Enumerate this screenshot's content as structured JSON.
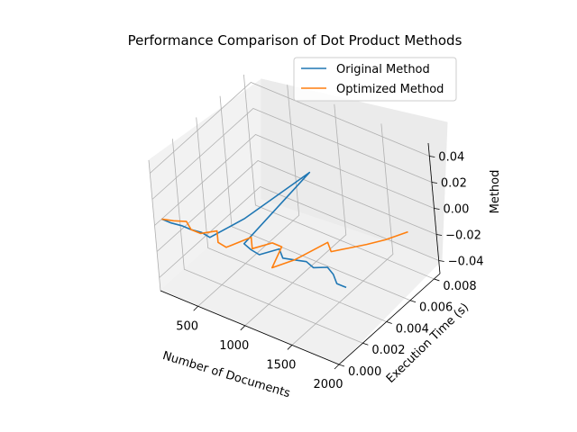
{
  "chart_data": {
    "type": "line",
    "projection": "3d",
    "title": "Performance Comparison of Dot Product Methods",
    "xlabel": "Number of Documents",
    "ylabel": "Execution Time (s)",
    "zlabel": "Method",
    "xlim": [
      100,
      2000
    ],
    "ylim": [
      0,
      0.0085
    ],
    "zlim": [
      -0.05,
      0.05
    ],
    "xticks": [
      500,
      1000,
      1500,
      2000
    ],
    "xtick_labels": [
      "500",
      "1000",
      "1500",
      "2000"
    ],
    "yticks": [
      0,
      0.002,
      0.004,
      0.006,
      0.008
    ],
    "ytick_labels": [
      "0.000",
      "0.002",
      "0.004",
      "0.006",
      "0.008"
    ],
    "zticks": [
      -0.04,
      -0.02,
      0,
      0.02,
      0.04
    ],
    "ztick_labels": [
      "−0.04",
      "−0.02",
      "0.00",
      "0.02",
      "0.04"
    ],
    "grid": true,
    "legend_position": "top-right",
    "series": [
      {
        "name": "Original Method",
        "color": "#1f77b4",
        "x": [
          100,
          200,
          300,
          400,
          500,
          600,
          700,
          800,
          900,
          1000,
          1100,
          1200,
          1300,
          1400,
          1500,
          1600,
          1700,
          1800,
          1900,
          2000
        ],
        "y": [
          0.0006,
          0.0006,
          0.0007,
          0.0007,
          0.0008,
          0.0007,
          0.0028,
          0.0075,
          0.0012,
          0.001,
          0.0009,
          0.0018,
          0.0013,
          0.0015,
          0.0017,
          0.0015,
          0.0019,
          0.0016,
          0.0011,
          0.0011
        ],
        "z": [
          0,
          0,
          0,
          0,
          0,
          0,
          0,
          0,
          0,
          0,
          0,
          0,
          0,
          0,
          0,
          0,
          0,
          0,
          0,
          0
        ]
      },
      {
        "name": "Optimized Method",
        "color": "#ff7f0e",
        "x": [
          100,
          200,
          300,
          400,
          500,
          600,
          700,
          800,
          900,
          1000,
          1100,
          1200,
          1300,
          1400,
          1500,
          1600,
          1700,
          1800,
          1900,
          2000
        ],
        "y": [
          0.0006,
          0.0008,
          0.0011,
          0.0007,
          0.0007,
          0.0013,
          0.0006,
          0.0005,
          0.0018,
          0.0011,
          0.002,
          0.002,
          0.0004,
          0.0015,
          0.0035,
          0.003,
          0.0037,
          0.0044,
          0.0052,
          0.0063
        ],
        "z": [
          0,
          0,
          0,
          0,
          0,
          0,
          0,
          0,
          0,
          0,
          0,
          0,
          0,
          0,
          0,
          0,
          0,
          0,
          0,
          0
        ]
      }
    ]
  }
}
